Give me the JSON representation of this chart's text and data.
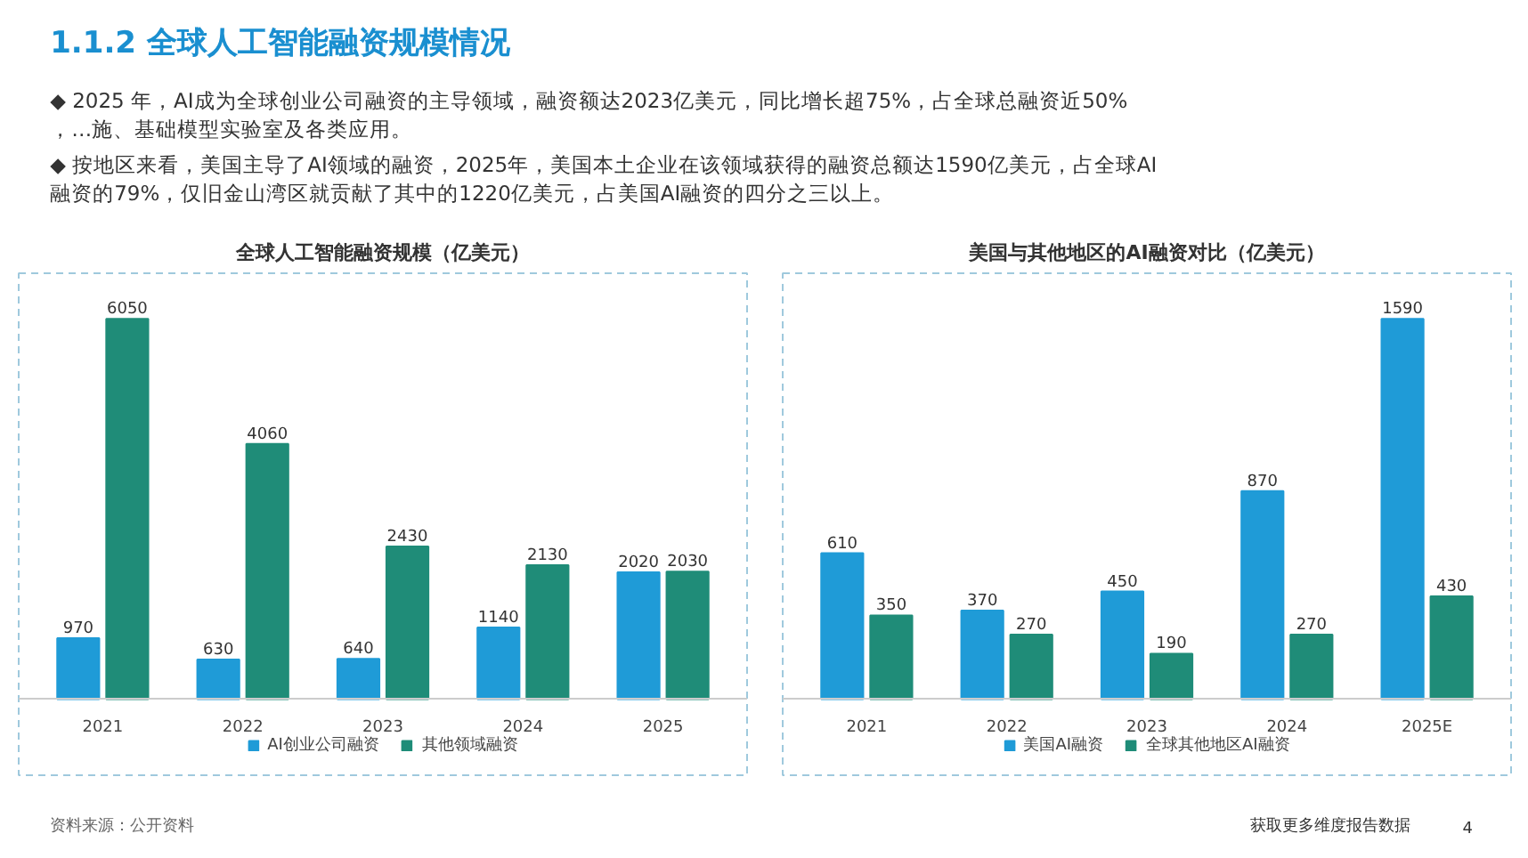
{
  "chart_data": [
    {
      "type": "other",
      "title": "1.1.2 全球人工智能融资规模情况",
      "annotations": [
        "◆ 2025 年，AI成为全球创业公司融资的主导领域，融资额达2023亿美元，同比增长超75%，占全球总融资近50%，…施、基础模型实验室及各类应用。",
        "◆ 按地区来看，美国主导了AI领域的融资，2025年，美国本土企业在该领域获得的融资总额达1590亿美元，占全球AI融资的79%，仅旧金山湾区就贡献了其中的1220亿美元，占美国AI融资的四分之三以上。",
        "资料来源：公开资料",
        "获取更多维度报告数据",
        "4"
      ]
    },
    {
      "type": "bar",
      "title": "全球人工智能融资规模（亿美元）",
      "categories": [
        "2021",
        "2022",
        "2023",
        "2024",
        "2025"
      ],
      "series": [
        {
          "name": "AI创业公司融资",
          "color": "#1f9bd7",
          "values": [
            970,
            630,
            640,
            1140,
            2020
          ]
        },
        {
          "name": "其他领域融资",
          "color": "#1f8c78",
          "values": [
            6050,
            4060,
            2430,
            2130,
            2030
          ]
        }
      ],
      "data_labels": true,
      "legend": "bottom",
      "grid": false
    },
    {
      "type": "bar",
      "title": "美国与其他地区的AI融资对比（亿美元）",
      "categories": [
        "2021",
        "2022",
        "2023",
        "2024",
        "2025E"
      ],
      "series": [
        {
          "name": "美国AI融资",
          "color": "#1f9bd7",
          "values": [
            610,
            370,
            450,
            870,
            1590
          ]
        },
        {
          "name": "全球其他地区AI融资",
          "color": "#1f8c78",
          "values": [
            350,
            270,
            190,
            270,
            430
          ]
        }
      ],
      "data_labels": true,
      "legend": "bottom",
      "grid": false
    }
  ]
}
